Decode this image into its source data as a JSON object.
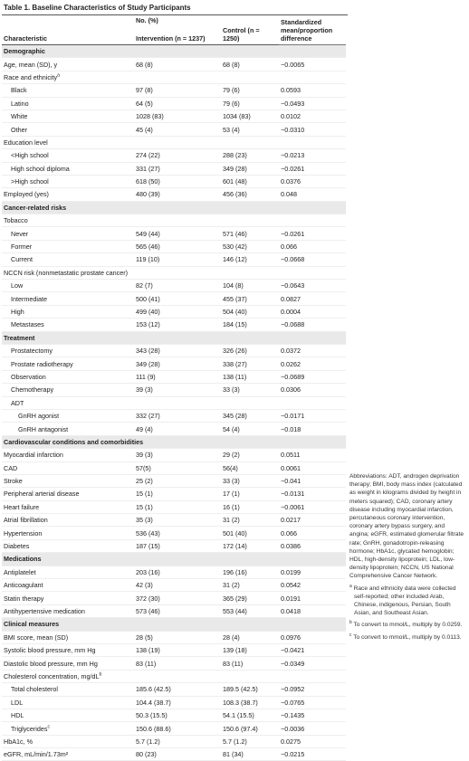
{
  "table": {
    "title": "Table 1. Baseline Characteristics of Study Participants",
    "header": {
      "characteristic": "Characteristic",
      "group": "No. (%)",
      "intervention": "Intervention (n = 1237)",
      "control": "Control (n = 1250)",
      "difference": "Standardized mean/proportion difference"
    },
    "rows": [
      {
        "label": "Demographic",
        "section": true
      },
      {
        "label": "Age, mean (SD), y",
        "indent": 0,
        "cells": [
          "68 (8)",
          "68 (8)",
          "−0.0065"
        ]
      },
      {
        "label": "Race and ethnicity",
        "note": "a",
        "indent": 0
      },
      {
        "label": "Black",
        "indent": 1,
        "cells": [
          "97 (8)",
          "79 (6)",
          "0.0593"
        ]
      },
      {
        "label": "Latino",
        "indent": 1,
        "cells": [
          "64 (5)",
          "79 (6)",
          "−0.0493"
        ]
      },
      {
        "label": "White",
        "indent": 1,
        "cells": [
          "1028 (83)",
          "1034 (83)",
          "0.0102"
        ]
      },
      {
        "label": "Other",
        "indent": 1,
        "cells": [
          "45 (4)",
          "53 (4)",
          "−0.0310"
        ]
      },
      {
        "label": "Education level",
        "indent": 0
      },
      {
        "label": "<High school",
        "indent": 1,
        "cells": [
          "274 (22)",
          "288 (23)",
          "−0.0213"
        ]
      },
      {
        "label": "High school diploma",
        "indent": 1,
        "cells": [
          "331 (27)",
          "349 (28)",
          "−0.0261"
        ]
      },
      {
        "label": ">High school",
        "indent": 1,
        "cells": [
          "618 (50)",
          "601 (48)",
          "0.0376"
        ]
      },
      {
        "label": "Employed (yes)",
        "indent": 0,
        "cells": [
          "480 (39)",
          "456 (36)",
          "0.048"
        ]
      },
      {
        "label": "Cancer-related risks",
        "section": true
      },
      {
        "label": "Tobacco",
        "indent": 0
      },
      {
        "label": "Never",
        "indent": 1,
        "cells": [
          "549 (44)",
          "571 (46)",
          "−0.0261"
        ]
      },
      {
        "label": "Former",
        "indent": 1,
        "cells": [
          "565 (46)",
          "530 (42)",
          "0.066"
        ]
      },
      {
        "label": "Current",
        "indent": 1,
        "cells": [
          "119 (10)",
          "146 (12)",
          "−0.0668"
        ]
      },
      {
        "label": "NCCN risk (nonmetastatic prostate cancer)",
        "indent": 0
      },
      {
        "label": "Low",
        "indent": 1,
        "cells": [
          "82 (7)",
          "104 (8)",
          "−0.0643"
        ]
      },
      {
        "label": "Intermediate",
        "indent": 1,
        "cells": [
          "500 (41)",
          "455 (37)",
          "0.0827"
        ]
      },
      {
        "label": "High",
        "indent": 1,
        "cells": [
          "499 (40)",
          "504 (40)",
          "0.0004"
        ]
      },
      {
        "label": "Metastases",
        "indent": 1,
        "cells": [
          "153 (12)",
          "184 (15)",
          "−0.0688"
        ]
      },
      {
        "label": "Treatment",
        "section": true
      },
      {
        "label": "Prostatectomy",
        "indent": 1,
        "cells": [
          "343 (28)",
          "326 (26)",
          "0.0372"
        ]
      },
      {
        "label": "Prostate radiotherapy",
        "indent": 1,
        "cells": [
          "349 (28)",
          "338 (27)",
          "0.0262"
        ]
      },
      {
        "label": "Observation",
        "indent": 1,
        "cells": [
          "111 (9)",
          "138 (11)",
          "−0.0689"
        ]
      },
      {
        "label": "Chemotherapy",
        "indent": 1,
        "cells": [
          "39 (3)",
          "33 (3)",
          "0.0306"
        ]
      },
      {
        "label": "ADT",
        "indent": 1
      },
      {
        "label": "GnRH agonist",
        "indent": 2,
        "cells": [
          "332 (27)",
          "345 (28)",
          "−0.0171"
        ]
      },
      {
        "label": "GnRH antagonist",
        "indent": 2,
        "cells": [
          "49 (4)",
          "54 (4)",
          "−0.018"
        ]
      },
      {
        "label": "Cardiovascular conditions and comorbidities",
        "section": true
      },
      {
        "label": "Myocardial infarction",
        "indent": 0,
        "cells": [
          "39 (3)",
          "29 (2)",
          "0.0511"
        ]
      },
      {
        "label": "CAD",
        "indent": 0,
        "cells": [
          "57(5)",
          "56(4)",
          "0.0061"
        ]
      },
      {
        "label": "Stroke",
        "indent": 0,
        "cells": [
          "25 (2)",
          "33 (3)",
          "−0.041"
        ]
      },
      {
        "label": "Peripheral arterial disease",
        "indent": 0,
        "cells": [
          "15 (1)",
          "17 (1)",
          "−0.0131"
        ]
      },
      {
        "label": "Heart failure",
        "indent": 0,
        "cells": [
          "15 (1)",
          "16 (1)",
          "−0.0061"
        ]
      },
      {
        "label": "Atrial fibrillation",
        "indent": 0,
        "cells": [
          "35 (3)",
          "31 (2)",
          "0.0217"
        ]
      },
      {
        "label": "Hypertension",
        "indent": 0,
        "cells": [
          "536 (43)",
          "501 (40)",
          "0.066"
        ]
      },
      {
        "label": "Diabetes",
        "indent": 0,
        "cells": [
          "187 (15)",
          "172 (14)",
          "0.0386"
        ]
      },
      {
        "label": "Medications",
        "section": true
      },
      {
        "label": "Antiplatelet",
        "indent": 0,
        "cells": [
          "203 (16)",
          "196 (16)",
          "0.0199"
        ]
      },
      {
        "label": "Anticoagulant",
        "indent": 0,
        "cells": [
          "42 (3)",
          "31 (2)",
          "0.0542"
        ]
      },
      {
        "label": "Statin therapy",
        "indent": 0,
        "cells": [
          "372 (30)",
          "365 (29)",
          "0.0191"
        ]
      },
      {
        "label": "Antihypertensive medication",
        "indent": 0,
        "cells": [
          "573 (46)",
          "553 (44)",
          "0.0418"
        ]
      },
      {
        "label": "Clinical measures",
        "section": true
      },
      {
        "label": "BMI score, mean (SD)",
        "indent": 0,
        "cells": [
          "28 (5)",
          "28 (4)",
          "0.0976"
        ]
      },
      {
        "label": "Systolic blood pressure, mm Hg",
        "indent": 0,
        "cells": [
          "138 (19)",
          "139 (18)",
          "−0.0421"
        ]
      },
      {
        "label": "Diastolic blood pressure, mm Hg",
        "indent": 0,
        "cells": [
          "83 (11)",
          "83 (11)",
          "−0.0349"
        ]
      },
      {
        "label": "Cholesterol concentration, mg/dL",
        "note": "b",
        "indent": 0
      },
      {
        "label": "Total cholesterol",
        "indent": 1,
        "cells": [
          "185.6 (42.5)",
          "189.5 (42.5)",
          "−0.0952"
        ]
      },
      {
        "label": "LDL",
        "indent": 1,
        "cells": [
          "104.4 (38.7)",
          "108.3 (38.7)",
          "−0.0765"
        ]
      },
      {
        "label": "HDL",
        "indent": 1,
        "cells": [
          "50.3 (15.5)",
          "54.1 (15.5)",
          "−0.1435"
        ]
      },
      {
        "label": "Triglycerides",
        "note": "c",
        "indent": 1,
        "cells": [
          "150.6 (88.6)",
          "150.6 (97.4)",
          "−0.0036"
        ]
      },
      {
        "label": "HbA1c, %",
        "indent": 0,
        "cells": [
          "5.7 (1.2)",
          "5.7 (1.2)",
          "0.0275"
        ]
      },
      {
        "label": "eGFR, mL/min/1.73m²",
        "indent": 0,
        "cells": [
          "80 (23)",
          "81 (34)",
          "−0.0215"
        ]
      }
    ],
    "notes": [
      {
        "text": "Abbreviations: ADT, androgen deprivation therapy; BMI, body mass index (calculated as weight in kilograms divided by height in meters squared); CAD, coronary artery disease including myocardial infarction, percutaneous coronary intervention, coronary artery bypass surgery, and angina; eGFR, estimated glomerular filtrate rate; GnRH, gonadotropin-releasing hormone; HbA1c, glycated hemoglobin; HDL, high-density lipoprotein; LDL, low-density lipoprotein; NCCN, US National Comprehensive Cancer Network."
      },
      {
        "marker": "a",
        "text": "Race and ethnicity data were collected self-reported; other included Arab, Chinese, indigenous, Persian, South Asian, and Southeast Asian."
      },
      {
        "marker": "b",
        "text": "To convert to mmol/L, multiply by 0.0259."
      },
      {
        "marker": "c",
        "text": "To convert to mmol/L, multiply by 0.0113."
      }
    ]
  }
}
